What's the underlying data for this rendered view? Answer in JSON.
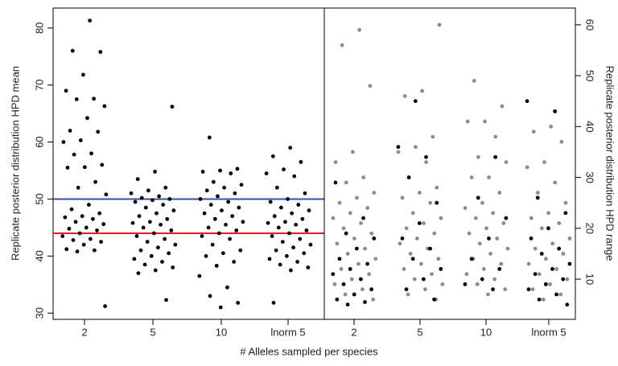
{
  "chart_data": [
    {
      "type": "scatter",
      "ylabel": "Replicate posterior distribution HPD mean",
      "xlabel": "# Alleles sampled per species",
      "categories": [
        "2",
        "5",
        "10",
        "lnorm 5"
      ],
      "color": "#000000",
      "ylim": [
        28.9,
        83.5
      ],
      "yticks": [
        30,
        40,
        50,
        60,
        70,
        80
      ],
      "hlines": [
        {
          "value": 50,
          "color": "#3b4ba8"
        },
        {
          "value": 44,
          "color": "#e02020"
        }
      ],
      "values": [
        [
          81.3,
          76,
          75.8,
          71.8,
          69,
          67.6,
          67.5,
          66.3,
          64.2,
          62,
          61.8,
          60.3,
          60,
          58,
          57.8,
          56,
          55.6,
          55.5,
          53,
          52,
          50.8,
          49,
          48.2,
          47.5,
          47,
          46.8,
          46.5,
          46,
          45.6,
          45,
          44.8,
          44.5,
          44,
          43.5,
          43,
          42.8,
          42.5,
          42,
          41.2,
          41,
          40.8,
          31.2
        ],
        [
          66.2,
          54.8,
          53.5,
          52,
          51.5,
          51,
          50.5,
          50.2,
          50,
          49.8,
          49.5,
          49,
          48.5,
          48,
          47.5,
          47,
          46.5,
          46,
          45.8,
          45.5,
          45,
          44.5,
          44,
          43.5,
          43,
          42.5,
          42,
          41.5,
          41,
          40.5,
          40,
          39.5,
          39,
          38.5,
          38,
          37.5,
          37,
          32.3
        ],
        [
          60.8,
          55.3,
          55,
          54.8,
          54.5,
          53,
          52.5,
          52,
          51.5,
          51,
          50.5,
          50,
          49.5,
          49,
          48.5,
          48,
          47.5,
          47,
          46.5,
          46,
          45.5,
          45,
          44.5,
          44,
          43.5,
          43,
          42,
          41,
          40.5,
          40,
          39,
          38.3,
          36.5,
          34.5,
          33,
          31.8,
          31
        ],
        [
          59,
          57.5,
          56.5,
          55.2,
          54.5,
          54,
          52,
          51,
          50,
          49.5,
          49,
          48.5,
          48,
          47.5,
          47,
          46.5,
          46,
          45.8,
          45.5,
          45,
          44.5,
          44,
          43.5,
          43,
          42.5,
          42,
          41.5,
          41,
          40.5,
          40,
          39.5,
          39,
          38.5,
          38,
          37.5,
          31.8
        ]
      ]
    },
    {
      "type": "scatter",
      "ylabel": "Replicate posterior distribution HPD range",
      "categories": [
        "2",
        "5",
        "10",
        "lnorm 5"
      ],
      "ylim": [
        2.1,
        63.3
      ],
      "yticks": [
        10,
        20,
        30,
        40,
        50,
        60
      ],
      "series": [
        {
          "color": "#8c8c8c",
          "values": [
            [
              59,
              56,
              48,
              35,
              33,
              30,
              29,
              27,
              26,
              25,
              24,
              23,
              22,
              21,
              20,
              19,
              18,
              17,
              16,
              15,
              14,
              13,
              12,
              11,
              10,
              9,
              8,
              7,
              6
            ],
            [
              60,
              47,
              46,
              38,
              36,
              35,
              33,
              30,
              28,
              27,
              26,
              25,
              23,
              22,
              21,
              20,
              19,
              18,
              17,
              16,
              15,
              14,
              13,
              12,
              11,
              10,
              9,
              8,
              7,
              6
            ],
            [
              49,
              44,
              41,
              41,
              38,
              34,
              33,
              30,
              30,
              27,
              25,
              24,
              23,
              22,
              21,
              20,
              19,
              18,
              17,
              16,
              15,
              14,
              13,
              12,
              11,
              10,
              9,
              8,
              7
            ],
            [
              40,
              39,
              37,
              33,
              32,
              29,
              27,
              25,
              23,
              22,
              21,
              20,
              18,
              17,
              16,
              15,
              14,
              13,
              12,
              11,
              10,
              9,
              8,
              7,
              6
            ]
          ]
        },
        {
          "color": "#000000",
          "values": [
            [
              29,
              22,
              19,
              18,
              16,
              14,
              13,
              12,
              11,
              10,
              9,
              8,
              7,
              6,
              5.5,
              5
            ],
            [
              45,
              36,
              34,
              30,
              25,
              21,
              18,
              16,
              14,
              12,
              10,
              8,
              6
            ],
            [
              34,
              26,
              22,
              18,
              14,
              12,
              10,
              9,
              8
            ],
            [
              45,
              43,
              26,
              23,
              20,
              18,
              16,
              15,
              13,
              12,
              11,
              10,
              9,
              8,
              7,
              6,
              5
            ]
          ]
        }
      ]
    }
  ]
}
